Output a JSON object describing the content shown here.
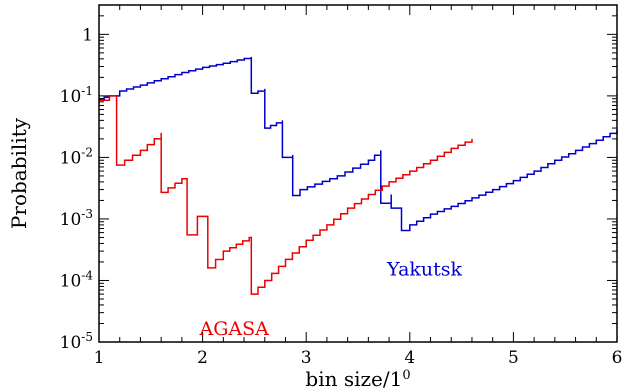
{
  "chart_data": {
    "type": "line",
    "title": "",
    "xlabel": "bin size/1",
    "xlabel_sup": "0",
    "ylabel": "Probability",
    "xlim": [
      1,
      6
    ],
    "ylim": [
      1e-05,
      3
    ],
    "yscale": "log",
    "x_ticks": [
      "1",
      "2",
      "3",
      "4",
      "5",
      "6"
    ],
    "y_ticks": [
      {
        "value": 1,
        "base": "1",
        "exp": ""
      },
      {
        "value": 0.1,
        "base": "10",
        "exp": "-1"
      },
      {
        "value": 0.01,
        "base": "10",
        "exp": "-2"
      },
      {
        "value": 0.001,
        "base": "10",
        "exp": "-3"
      },
      {
        "value": 0.0001,
        "base": "10",
        "exp": "-4"
      },
      {
        "value": 1e-05,
        "base": "10",
        "exp": "-5"
      }
    ],
    "grid": false,
    "series": [
      {
        "name": "Yakutsk",
        "color": "#0000cc",
        "x": [
          1.0,
          1.05,
          1.1,
          1.2,
          1.4,
          1.6,
          1.8,
          2.0,
          2.2,
          2.47,
          2.47,
          2.6,
          2.6,
          2.77,
          2.77,
          2.87,
          2.87,
          2.94,
          2.94,
          3.3,
          3.6,
          3.72,
          3.72,
          3.82,
          3.82,
          3.92,
          3.92,
          4.0,
          4.2,
          4.4,
          4.6,
          4.8,
          5.0,
          5.2,
          5.4,
          5.6,
          5.8,
          6.0
        ],
        "y": [
          0.09,
          0.095,
          0.1,
          0.12,
          0.15,
          0.19,
          0.24,
          0.29,
          0.34,
          0.43,
          0.11,
          0.13,
          0.03,
          0.04,
          0.01,
          0.011,
          0.0024,
          0.003,
          0.003,
          0.005,
          0.009,
          0.013,
          0.0018,
          0.0025,
          0.0015,
          0.0015,
          0.00065,
          0.0008,
          0.0012,
          0.0016,
          0.0022,
          0.003,
          0.0042,
          0.006,
          0.009,
          0.013,
          0.019,
          0.028
        ]
      },
      {
        "name": "AGASA",
        "color": "#ee0000",
        "x": [
          1.0,
          1.1,
          1.17,
          1.17,
          1.4,
          1.6,
          1.6,
          1.8,
          1.85,
          1.85,
          1.95,
          2.05,
          2.05,
          2.2,
          2.45,
          2.47,
          2.47,
          2.6,
          2.8,
          3.0,
          3.2,
          3.4,
          3.6,
          3.8,
          4.0,
          4.2,
          4.4,
          4.6
        ],
        "y": [
          0.085,
          0.1,
          0.1,
          0.0075,
          0.013,
          0.025,
          0.0027,
          0.0045,
          0.0045,
          0.00055,
          0.0011,
          0.0011,
          0.00016,
          0.0003,
          0.0005,
          0.0005,
          6e-05,
          0.0001,
          0.00022,
          0.00045,
          0.0008,
          0.0015,
          0.0025,
          0.004,
          0.006,
          0.009,
          0.014,
          0.02
        ]
      }
    ]
  },
  "labels": {
    "yakutsk": "Yakutsk",
    "agasa": "AGASA"
  }
}
